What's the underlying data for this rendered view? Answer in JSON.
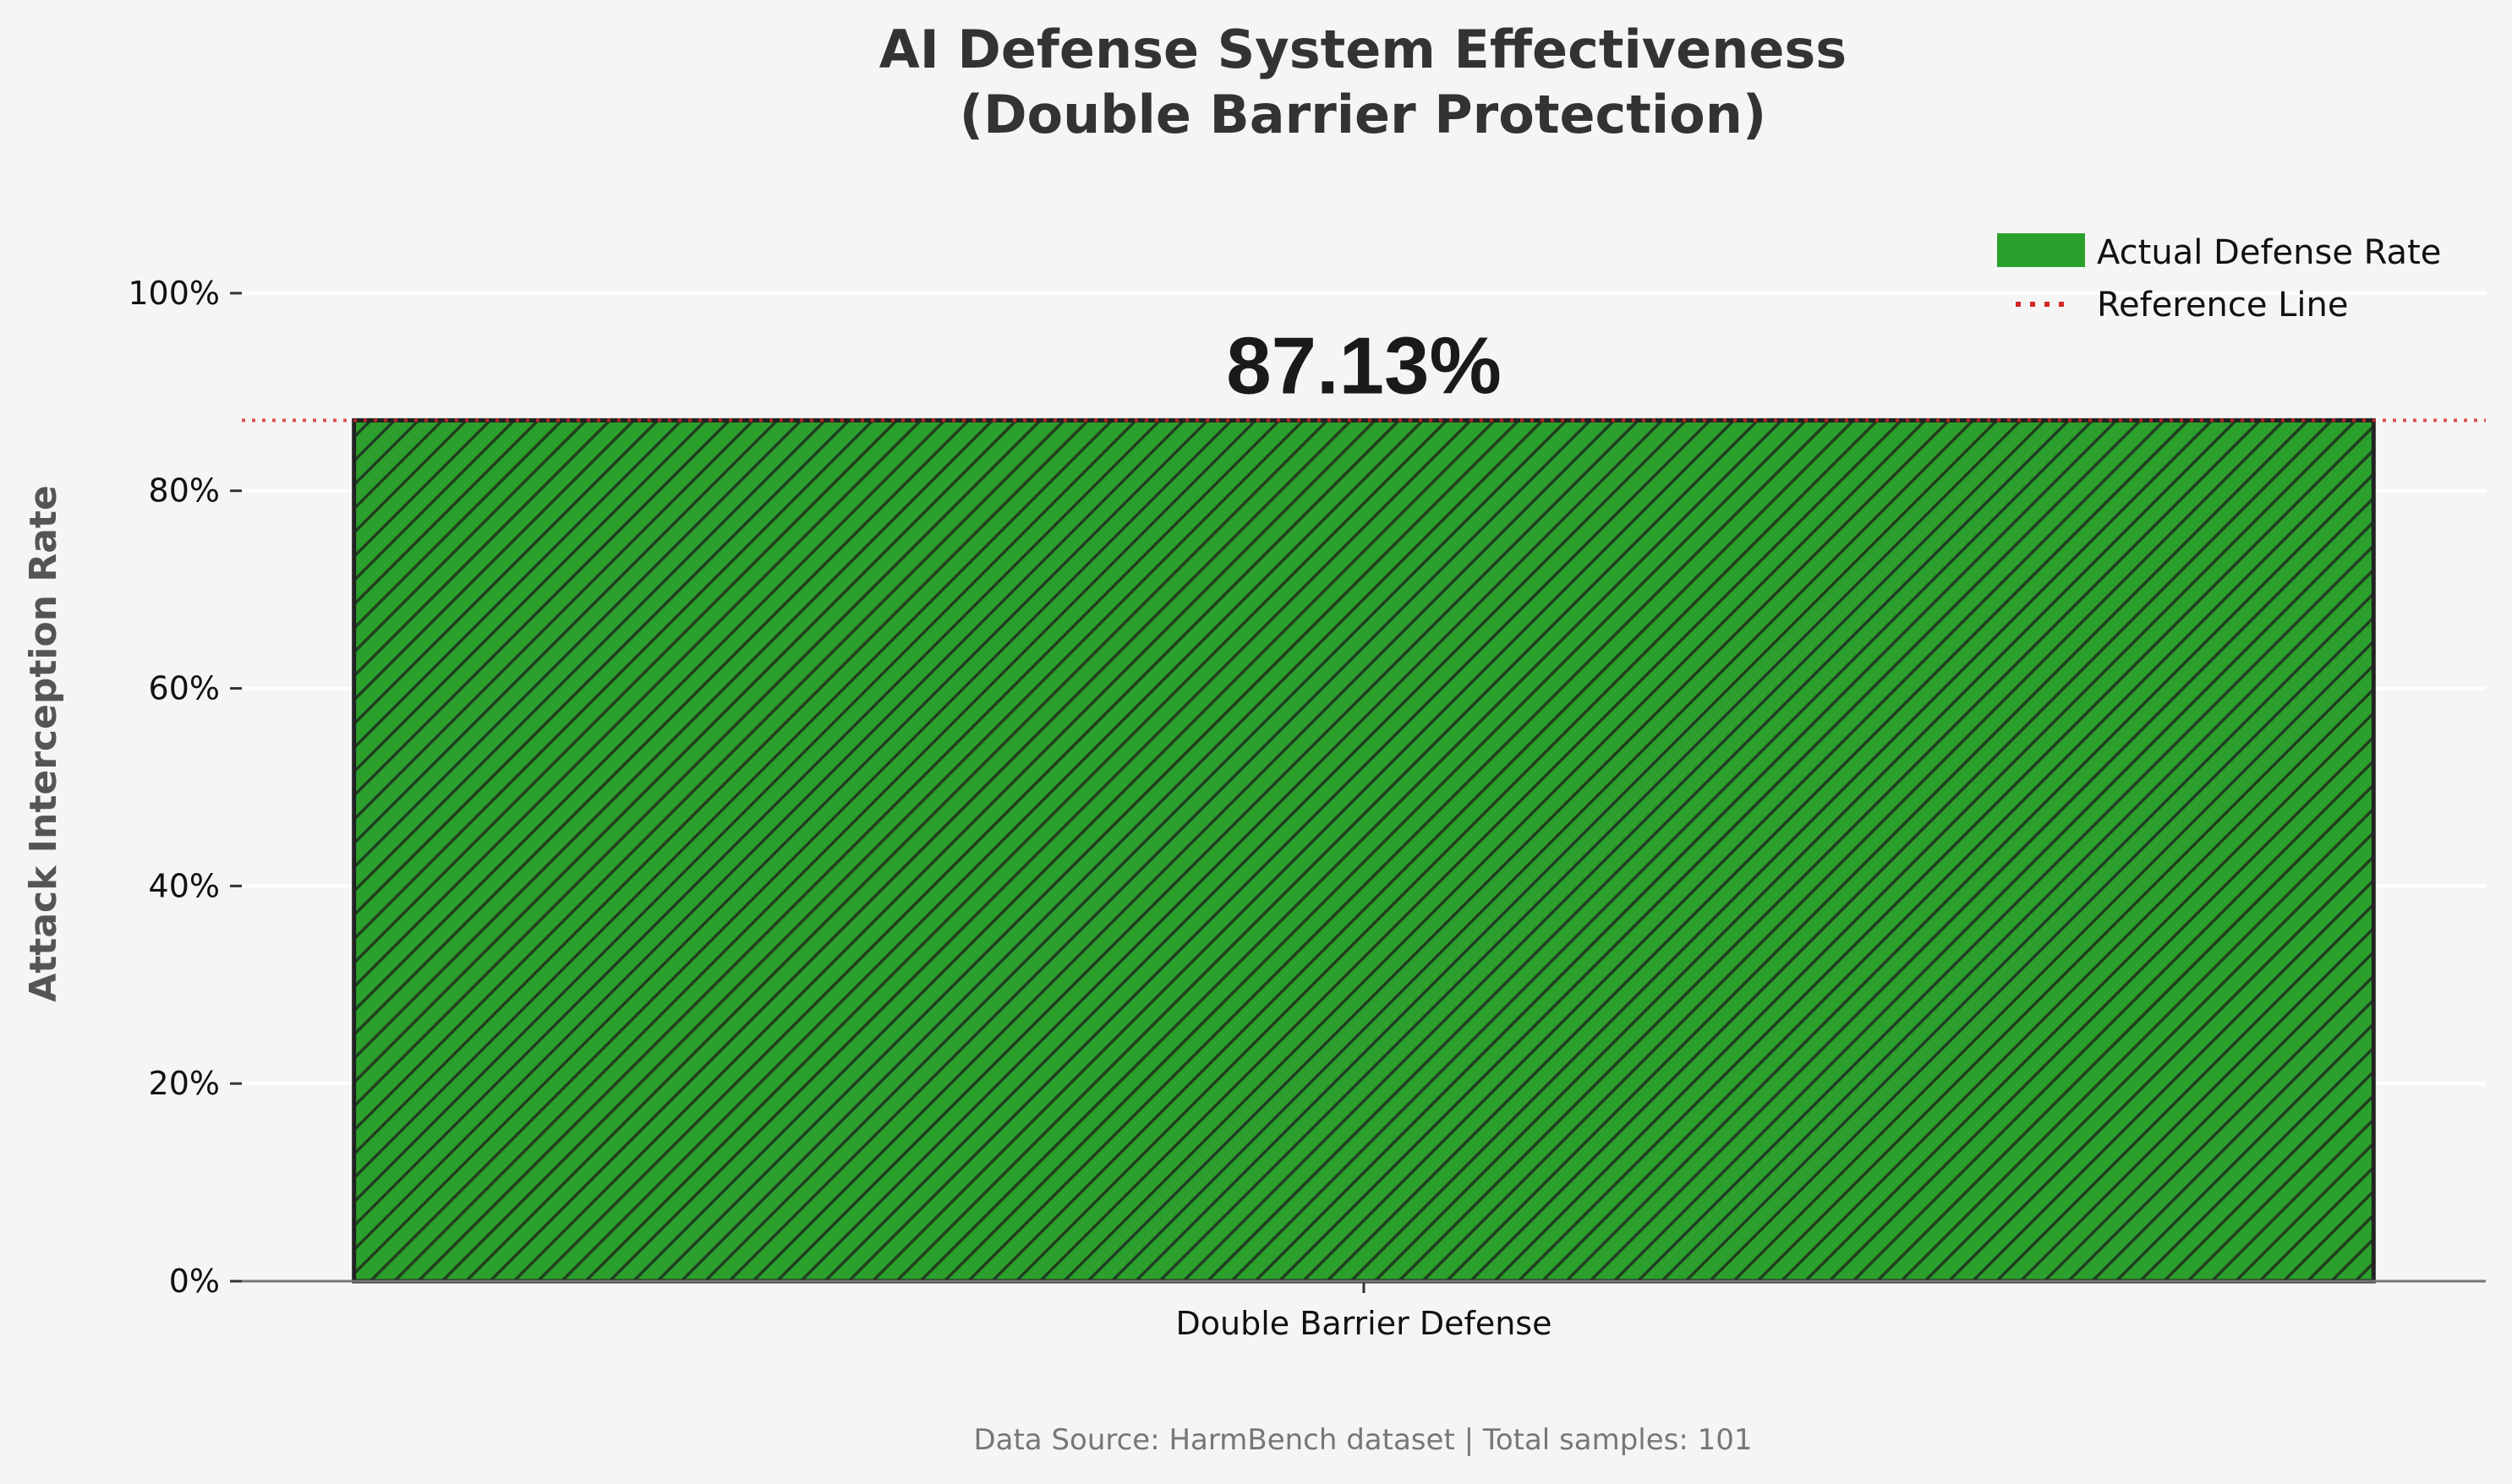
{
  "chart_data": {
    "type": "bar",
    "title_line1": "AI Defense System Effectiveness",
    "title_line2": "(Double Barrier Protection)",
    "categories": [
      "Double Barrier Defense"
    ],
    "values": [
      87.13
    ],
    "data_label": "87.13%",
    "ylabel": "Attack Interception Rate",
    "ylim": [
      0,
      110
    ],
    "yticks": [
      0,
      20,
      40,
      60,
      80,
      100
    ],
    "ytick_labels": [
      "0%",
      "20%",
      "40%",
      "60%",
      "80%",
      "100%"
    ],
    "reference_value": 87.13,
    "grid": "horizontal",
    "legend_position": "top-right",
    "legend": [
      {
        "label": "Actual Defense Rate",
        "kind": "patch",
        "color": "#2ca02c"
      },
      {
        "label": "Reference Line",
        "kind": "dotted-line",
        "color": "#d62728"
      }
    ],
    "bar_color": "#2ca02c",
    "bar_hatch_color": "#1f3f1f",
    "reference_color": "#d62728"
  },
  "footer": "Data Source: HarmBench dataset | Total samples: 101"
}
